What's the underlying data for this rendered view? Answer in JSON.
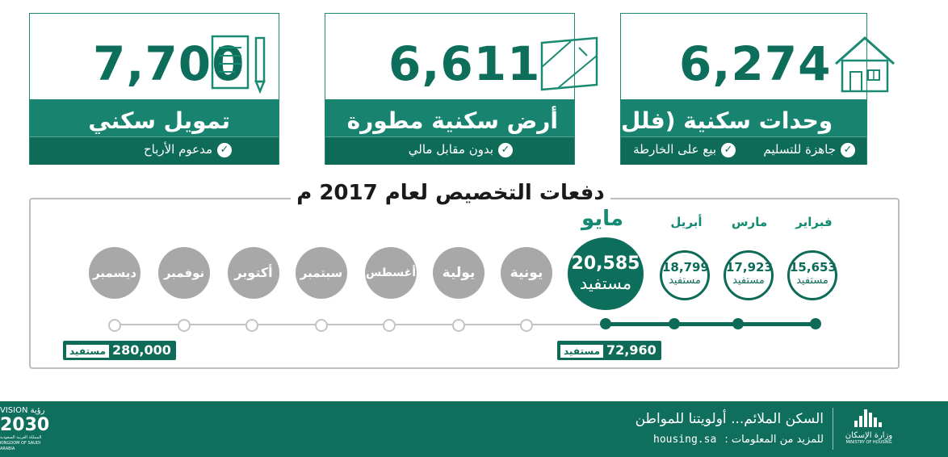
{
  "cards": [
    {
      "value": "7,700",
      "title": "تمويل سكني",
      "notes": [
        "مدعوم الأرباح"
      ],
      "icon": "document-pen-icon"
    },
    {
      "value": "6,611",
      "title": "أرض سكنية مطورة",
      "notes": [
        "بدون مقابل مالي"
      ],
      "icon": "land-plot-icon"
    },
    {
      "value": "6,274",
      "title": "وحدات سكنية (فلل وشقق)",
      "notes": [
        "جاهزة للتسليم",
        "بيع على الخارطة"
      ],
      "icon": "house-icon"
    }
  ],
  "timeline": {
    "title": "دفعات التخصيص لعام  2017 م",
    "completed": [
      {
        "month": "فبراير",
        "count": "15,653",
        "unit": "مستفيد"
      },
      {
        "month": "مارس",
        "count": "17,923",
        "unit": "مستفيد"
      },
      {
        "month": "أبريل",
        "count": "18,799",
        "unit": "مستفيد"
      }
    ],
    "current": {
      "month": "مايو",
      "count": "20,585",
      "unit": "مستفيد"
    },
    "upcoming": [
      "يونية",
      "يولية",
      "أغسطس",
      "سبتمبر",
      "أكتوبر",
      "نوفمبر",
      "ديسمبر"
    ],
    "total_done": {
      "value": "72,960",
      "unit": "مستفيد"
    },
    "total_target": {
      "value": "280,000",
      "unit": "مستفيد"
    }
  },
  "footer": {
    "slogan": "السكن الملائم... أولويتنا للمواطن",
    "more_label": "للمزيد من المعلومات :",
    "site": "housing.sa",
    "ministry": "وزارة الإسكان",
    "ministry_en": "MINISTRY OF HOUSING",
    "vision_ar": "رؤية",
    "vision": "VISION",
    "vision_year": "2030",
    "vision_kingdom": "المملكة العربية السعودية",
    "vision_kingdom_en": "KINGDOM OF SAUDI ARABIA"
  },
  "colors": {
    "primary": "#0e6b58",
    "band": "#188470",
    "upcoming": "#a8a8a8"
  }
}
